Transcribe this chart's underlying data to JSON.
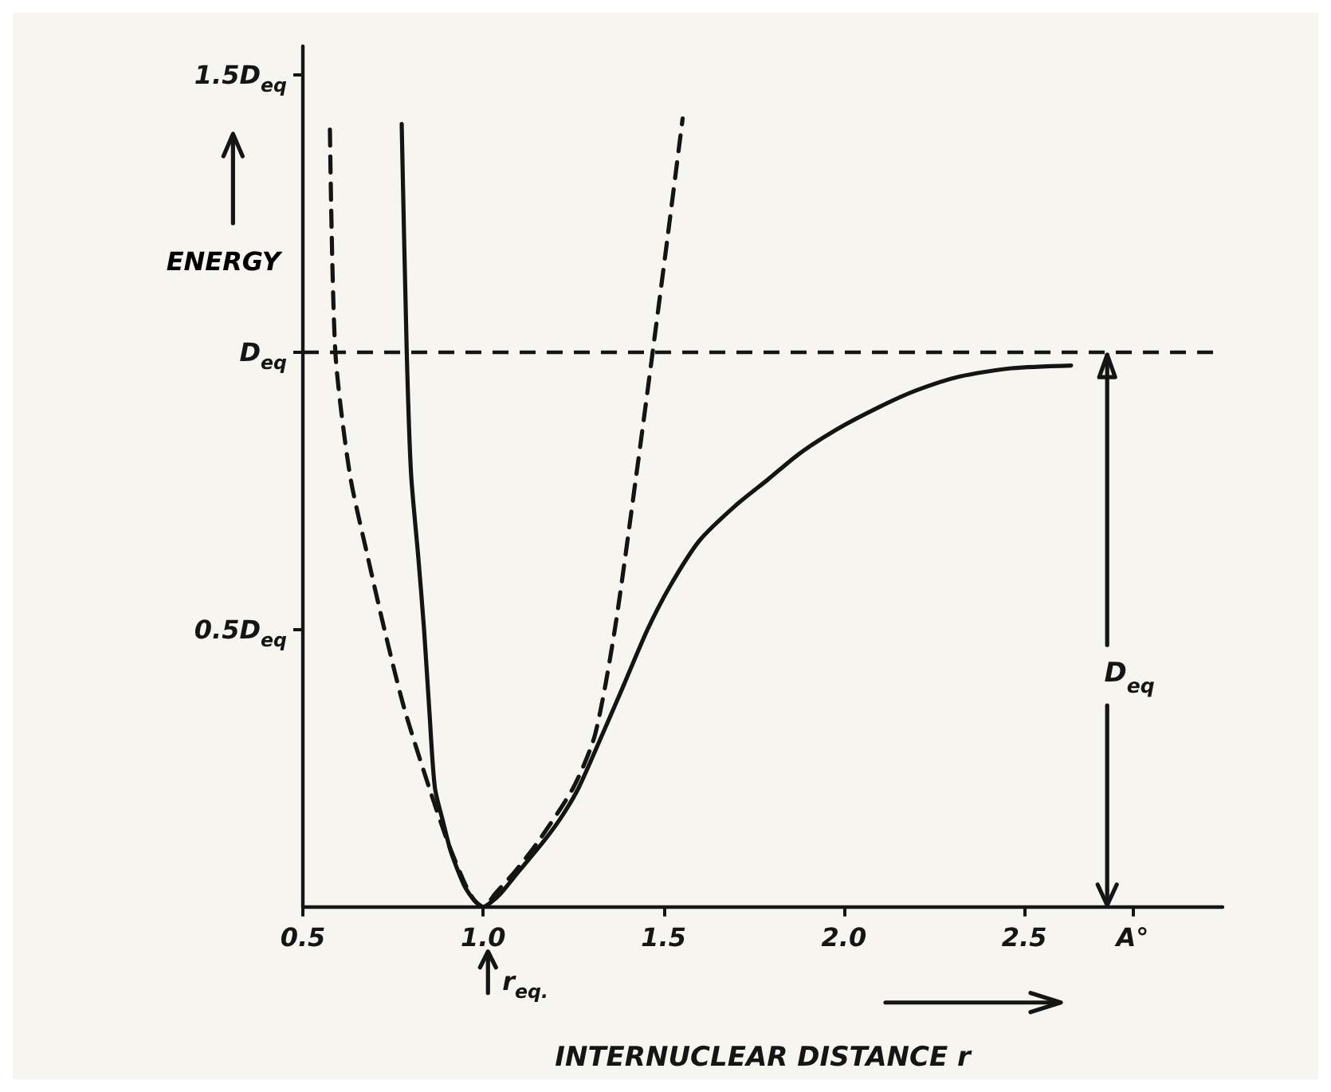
{
  "chart_data": {
    "type": "line",
    "xlabel": "INTERNUCLEAR DISTANCE r",
    "ylabel": "ENERGY",
    "xlim": [
      0.5,
      3.05
    ],
    "xticks": [
      {
        "value": 0.5,
        "label": "0.5"
      },
      {
        "value": 1,
        "label": "1.0"
      },
      {
        "value": 1.5,
        "label": "1.5"
      },
      {
        "value": 2,
        "label": "2.0"
      },
      {
        "value": 2.5,
        "label": "2.5"
      },
      {
        "value": 2.8,
        "label": "A°"
      }
    ],
    "ylim": [
      0,
      1.55
    ],
    "yticks": [
      {
        "value": 0.5,
        "label": "0.5D$_{eq}$"
      },
      {
        "value": 1,
        "label": "D$_{eq}$"
      },
      {
        "value": 1.5,
        "label": "1.5D$_{eq}$"
      }
    ],
    "marker": "none",
    "series": [
      {
        "color": "#141414",
        "line_style": "solid",
        "x": [
          0.774,
          0.788,
          0.8,
          0.82,
          0.836,
          0.851,
          0.866,
          0.89,
          0.91,
          0.93,
          0.95,
          0.975,
          1.0,
          1.025,
          1.05,
          1.1,
          1.17,
          1.22,
          1.265,
          1.33,
          1.39,
          1.456,
          1.52,
          1.6,
          1.7,
          1.79,
          1.876,
          1.98,
          2.097,
          2.2,
          2.32,
          2.465,
          2.63
        ],
        "values": [
          1.41,
          1.0,
          0.78,
          0.63,
          0.5,
          0.35,
          0.215,
          0.15,
          0.1,
          0.065,
          0.035,
          0.012,
          0,
          0.01,
          0.025,
          0.065,
          0.12,
          0.165,
          0.215,
          0.31,
          0.4,
          0.5,
          0.58,
          0.66,
          0.723,
          0.77,
          0.816,
          0.86,
          0.9,
          0.93,
          0.955,
          0.97,
          0.975
        ]
      },
      {
        "color": "#141414",
        "line_style": "dashed",
        "x": [
          0.575,
          0.59,
          0.63,
          0.68,
          0.726,
          0.78,
          0.85,
          0.9,
          0.947,
          0.975,
          1.0,
          1.035,
          1.09,
          1.155,
          1.25,
          1.31,
          1.365,
          1.425,
          1.47,
          1.51,
          1.553
        ],
        "values": [
          1.4,
          1.0,
          0.78,
          0.63,
          0.5,
          0.36,
          0.215,
          0.12,
          0.045,
          0.012,
          0,
          0.025,
          0.065,
          0.12,
          0.215,
          0.31,
          0.5,
          0.78,
          1.0,
          1.2,
          1.42
        ]
      }
    ],
    "ref_lines": [
      {
        "axis": "y",
        "value": 1,
        "line_style": "dashed",
        "color": "#141414"
      }
    ],
    "annotations": [
      {
        "text": "r$_{eq.}$",
        "x": 1,
        "y": 0
      },
      {
        "text": "D$_{eq}$",
        "x": 2.73,
        "y": 1
      }
    ]
  }
}
